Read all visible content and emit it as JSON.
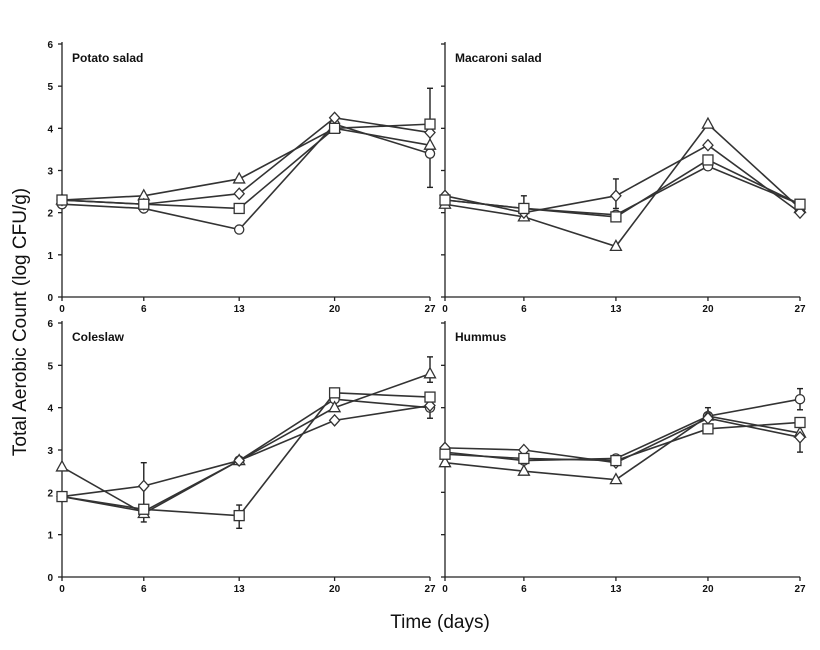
{
  "figure": {
    "ylabel": "Total Aerobic Count (log CFU/g)",
    "xlabel": "Time (days)"
  },
  "chart_data": [
    {
      "type": "line",
      "title": "Potato salad",
      "x": [
        0,
        6,
        13,
        20,
        27
      ],
      "x_tick_labels": [
        "0",
        "6",
        "13",
        "20",
        "27"
      ],
      "ylim": [
        0,
        6
      ],
      "y_tick_labels": [
        "0",
        "1",
        "2",
        "3",
        "4",
        "5",
        "6"
      ],
      "series": [
        {
          "marker": "circle",
          "values": [
            2.2,
            2.1,
            1.6,
            4.1,
            3.4
          ]
        },
        {
          "marker": "triangle",
          "values": [
            2.3,
            2.4,
            2.8,
            4.0,
            3.6
          ]
        },
        {
          "marker": "diamond",
          "values": [
            2.3,
            2.2,
            2.45,
            4.25,
            3.9
          ]
        },
        {
          "marker": "square",
          "values": [
            2.3,
            2.2,
            2.1,
            4.0,
            4.1
          ]
        }
      ],
      "error_bars": [
        {
          "series": 3,
          "x": 27,
          "lower": 2.6,
          "upper": 4.95
        }
      ]
    },
    {
      "type": "line",
      "title": "Macaroni salad",
      "x": [
        0,
        6,
        13,
        20,
        27
      ],
      "x_tick_labels": [
        "0",
        "6",
        "13",
        "20",
        "27"
      ],
      "ylim": [
        0,
        6
      ],
      "y_tick_labels": [],
      "series": [
        {
          "marker": "circle",
          "values": [
            2.3,
            2.1,
            1.95,
            3.1,
            2.2
          ]
        },
        {
          "marker": "triangle",
          "values": [
            2.2,
            1.9,
            1.2,
            4.1,
            2.1
          ]
        },
        {
          "marker": "diamond",
          "values": [
            2.4,
            2.0,
            2.4,
            3.6,
            2.0
          ]
        },
        {
          "marker": "square",
          "values": [
            2.3,
            2.1,
            1.9,
            3.25,
            2.2
          ]
        }
      ],
      "error_bars": [
        {
          "series": 2,
          "x": 13,
          "lower": 2.1,
          "upper": 2.8
        },
        {
          "series": 0,
          "x": 6,
          "lower": 1.9,
          "upper": 2.4
        }
      ]
    },
    {
      "type": "line",
      "title": "Coleslaw",
      "x": [
        0,
        6,
        13,
        20,
        27
      ],
      "x_tick_labels": [
        "0",
        "6",
        "13",
        "20",
        "27"
      ],
      "ylim": [
        0,
        6
      ],
      "y_tick_labels": [
        "0",
        "1",
        "2",
        "3",
        "4",
        "5",
        "6"
      ],
      "series": [
        {
          "marker": "circle",
          "values": [
            1.9,
            1.55,
            2.75,
            4.2,
            4.0
          ]
        },
        {
          "marker": "triangle",
          "values": [
            2.6,
            1.5,
            2.75,
            4.0,
            4.8
          ]
        },
        {
          "marker": "diamond",
          "values": [
            1.9,
            2.15,
            2.75,
            3.7,
            4.05
          ]
        },
        {
          "marker": "square",
          "values": [
            1.9,
            1.6,
            1.45,
            4.35,
            4.25
          ]
        }
      ],
      "error_bars": [
        {
          "series": 2,
          "x": 6,
          "lower": 1.3,
          "upper": 2.7
        },
        {
          "series": 3,
          "x": 13,
          "lower": 1.15,
          "upper": 1.7
        },
        {
          "series": 1,
          "x": 27,
          "lower": 4.6,
          "upper": 5.2
        },
        {
          "series": 0,
          "x": 27,
          "lower": 3.75,
          "upper": 4.3
        }
      ]
    },
    {
      "type": "line",
      "title": "Hummus",
      "x": [
        0,
        6,
        13,
        20,
        27
      ],
      "x_tick_labels": [
        "0",
        "6",
        "13",
        "20",
        "27"
      ],
      "ylim": [
        0,
        6
      ],
      "y_tick_labels": [],
      "series": [
        {
          "marker": "circle",
          "values": [
            2.95,
            2.75,
            2.8,
            3.8,
            4.2
          ]
        },
        {
          "marker": "triangle",
          "values": [
            2.7,
            2.5,
            2.3,
            3.8,
            3.4
          ]
        },
        {
          "marker": "diamond",
          "values": [
            3.05,
            3.0,
            2.7,
            3.75,
            3.3
          ]
        },
        {
          "marker": "square",
          "values": [
            2.9,
            2.8,
            2.75,
            3.5,
            3.65
          ]
        }
      ],
      "error_bars": [
        {
          "series": 0,
          "x": 27,
          "lower": 3.95,
          "upper": 4.45
        },
        {
          "series": 2,
          "x": 27,
          "lower": 2.95,
          "upper": 3.55
        },
        {
          "series": 0,
          "x": 20,
          "lower": 3.6,
          "upper": 4.0
        }
      ]
    }
  ]
}
